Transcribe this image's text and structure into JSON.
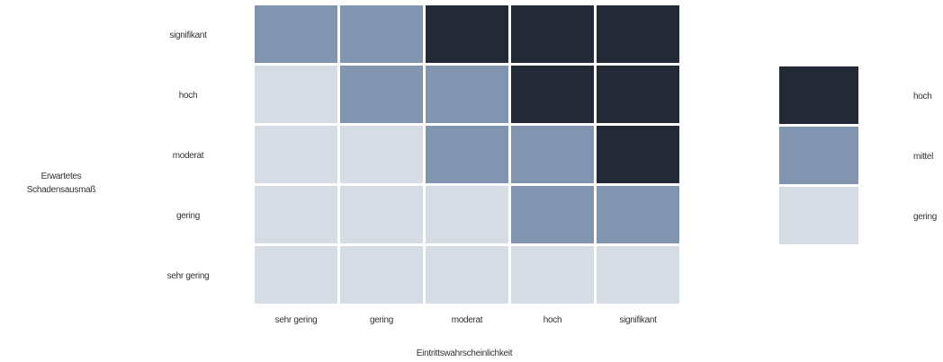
{
  "chart_data": {
    "type": "heatmap",
    "ylabel": "Erwartetes Schadensausmaß",
    "xlabel": "Eintrittswahrscheinlichkeit",
    "x_categories": [
      "sehr gering",
      "gering",
      "moderat",
      "hoch",
      "signifikant"
    ],
    "y_categories": [
      "signifikant",
      "hoch",
      "moderat",
      "gering",
      "sehr gering"
    ],
    "matrix": [
      [
        "mittel",
        "mittel",
        "hoch",
        "hoch",
        "hoch"
      ],
      [
        "gering",
        "mittel",
        "mittel",
        "hoch",
        "hoch"
      ],
      [
        "gering",
        "gering",
        "mittel",
        "mittel",
        "hoch"
      ],
      [
        "gering",
        "gering",
        "gering",
        "mittel",
        "mittel"
      ],
      [
        "gering",
        "gering",
        "gering",
        "gering",
        "gering"
      ]
    ],
    "legend": {
      "placement": "right",
      "entries": [
        {
          "label": "hoch",
          "color": "#232a35"
        },
        {
          "label": "mittel",
          "color": "#8195b0"
        },
        {
          "label": "gering",
          "color": "#d6dce4"
        }
      ]
    }
  }
}
